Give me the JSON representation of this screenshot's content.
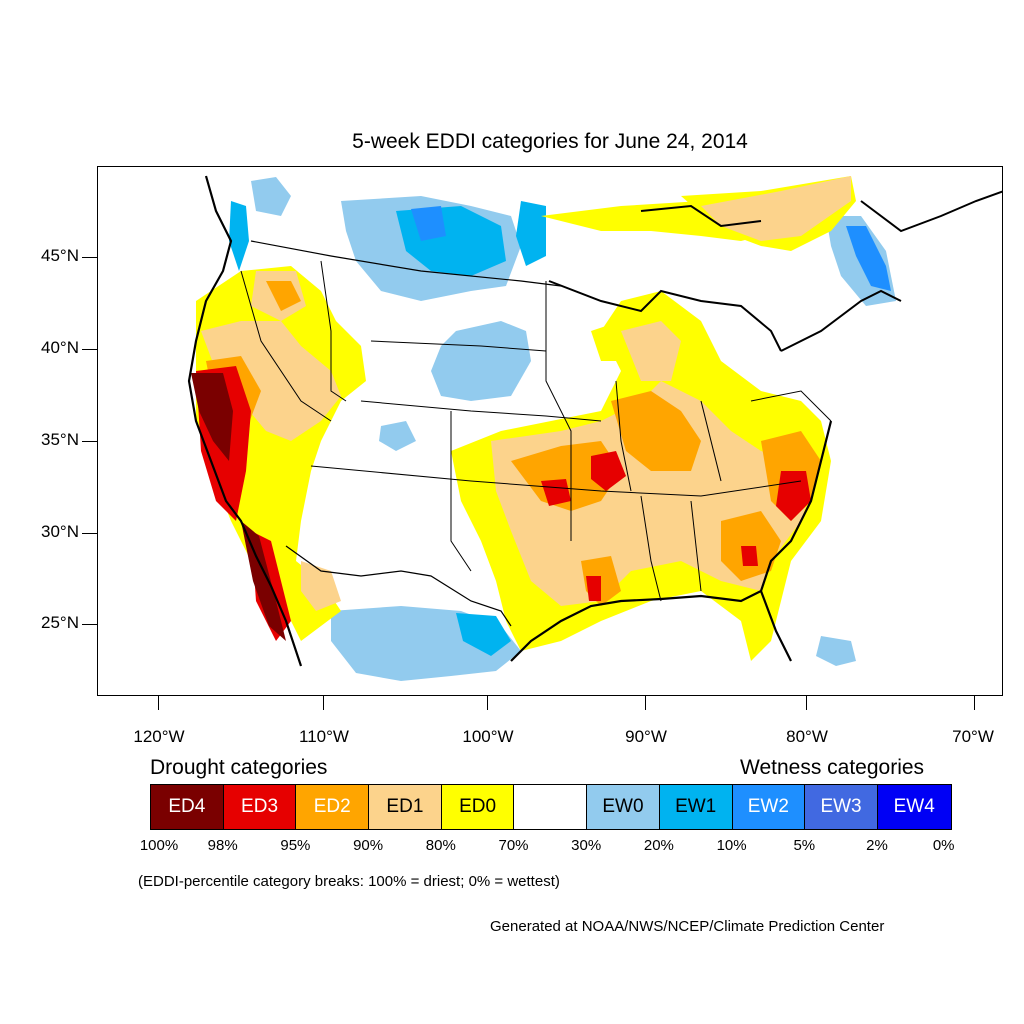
{
  "title": "5-week EDDI categories for June 24, 2014",
  "latitude_labels": [
    "45°N",
    "40°N",
    "35°N",
    "30°N",
    "25°N"
  ],
  "longitude_labels": [
    "120°W",
    "110°W",
    "100°W",
    "90°W",
    "80°W",
    "70°W"
  ],
  "legend": {
    "drought_heading": "Drought categories",
    "wetness_heading": "Wetness categories",
    "categories": [
      {
        "label": "ED4",
        "color": "#7a0000",
        "text_color": "#ffffff"
      },
      {
        "label": "ED3",
        "color": "#e60000",
        "text_color": "#ffffff"
      },
      {
        "label": "ED2",
        "color": "#ffa500",
        "text_color": "#ffffff"
      },
      {
        "label": "ED1",
        "color": "#fcd38c",
        "text_color": "#000000"
      },
      {
        "label": "ED0",
        "color": "#ffff00",
        "text_color": "#000000"
      },
      {
        "label": "",
        "color": "#ffffff",
        "text_color": "#000000"
      },
      {
        "label": "EW0",
        "color": "#92cbee",
        "text_color": "#000000"
      },
      {
        "label": "EW1",
        "color": "#00b3f0",
        "text_color": "#000000"
      },
      {
        "label": "EW2",
        "color": "#1e8fff",
        "text_color": "#ffffff"
      },
      {
        "label": "EW3",
        "color": "#4169e1",
        "text_color": "#ffffff"
      },
      {
        "label": "EW4",
        "color": "#0000f5",
        "text_color": "#ffffff"
      }
    ],
    "percent_breaks": [
      "100%",
      "98%",
      "95%",
      "90%",
      "80%",
      "70%",
      "30%",
      "20%",
      "10%",
      "5%",
      "2%",
      "0%"
    ]
  },
  "note": "(EDDI-percentile category breaks: 100% = driest; 0% = wettest)",
  "credit": "Generated at NOAA/NWS/NCEP/Climate Prediction Center"
}
